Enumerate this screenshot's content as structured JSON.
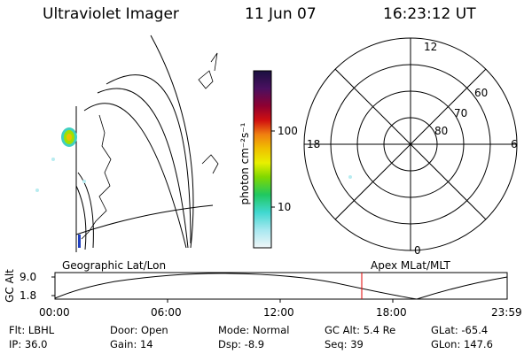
{
  "header": {
    "title": "Ultraviolet Imager",
    "date": "11 Jun 07",
    "time": "16:23:12 UT"
  },
  "colorbar": {
    "unit_label": "photon cm⁻²s⁻¹",
    "ticks": [
      "100",
      "10"
    ],
    "colors": [
      "#1a1040",
      "#3a1060",
      "#6a0040",
      "#a00020",
      "#d01010",
      "#e84010",
      "#f08010",
      "#f0c000",
      "#e8f000",
      "#a0e000",
      "#40d000",
      "#00c880",
      "#40d8d0",
      "#a0e8f0",
      "#e8f4f8"
    ]
  },
  "polar": {
    "mlt_labels": {
      "top": "12",
      "left": "18",
      "right": "6",
      "bottom": "0"
    },
    "lat_labels": [
      "60",
      "70",
      "80"
    ]
  },
  "orbit": {
    "y_axis_label": "GC Alt",
    "y_ticks": [
      "9.0",
      "1.8"
    ],
    "left_caption": "Geographic Lat/Lon",
    "right_caption": "Apex MLat/MLT",
    "x_ticks": [
      "00:00",
      "06:00",
      "12:00",
      "18:00",
      "23:59"
    ],
    "marker_color": "#e00000"
  },
  "footer": {
    "row1": [
      "Flt: LBHL",
      "Door: Open",
      "Mode: Normal",
      "GC Alt: 5.4 Re",
      "GLat: -65.4"
    ],
    "row2": [
      "IP: 36.0",
      "Gain: 14",
      "Dsp: -8.9",
      "Seq: 39",
      "GLon: 147.6"
    ]
  }
}
